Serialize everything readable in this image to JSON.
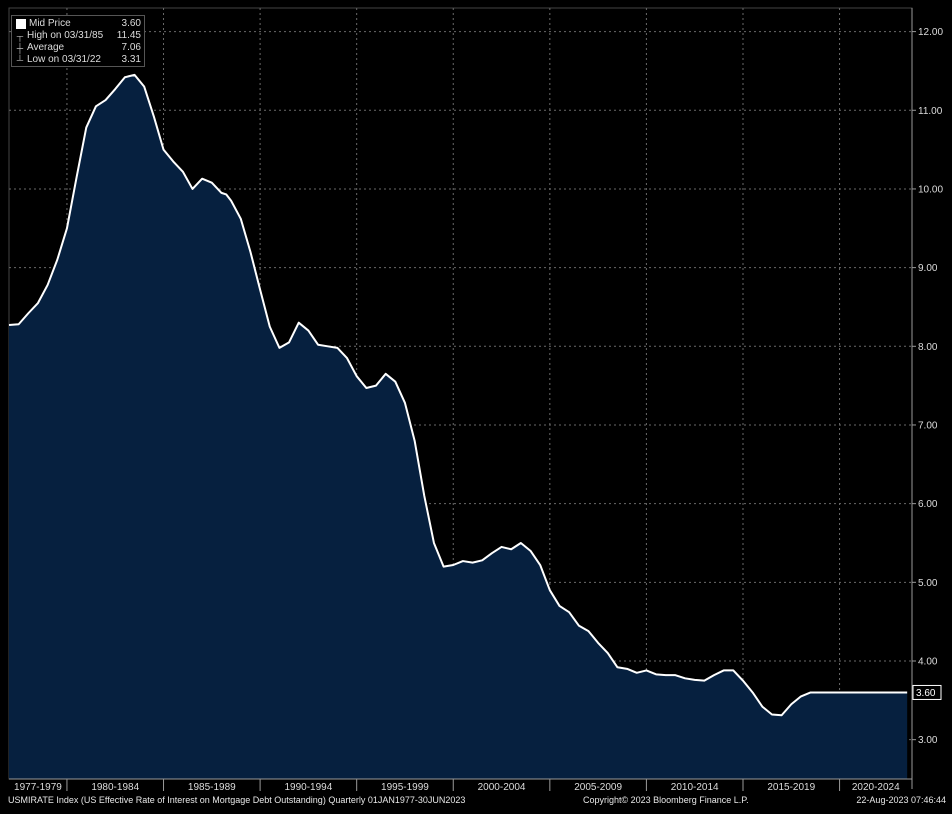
{
  "legend": {
    "mid_label": "Mid Price",
    "mid_value": "3.60",
    "high_label": "High on 03/31/85",
    "high_value": "11.45",
    "avg_label": "Average",
    "avg_value": "7.06",
    "low_label": "Low on 03/31/22",
    "low_value": "3.31"
  },
  "last_value_tag": "3.60",
  "footer": {
    "left": "USMIRATE Index (US Effective Rate of Interest on Mortgage Debt Outstanding)  Quarterly 01JAN1977-30JUN2023",
    "center": "Copyright© 2023 Bloomberg Finance L.P.",
    "right": "22-Aug-2023 07:46:44"
  },
  "colors": {
    "background": "#000000",
    "fill": "#06203f",
    "line": "#ffffff",
    "grid": "#6a6a6a"
  },
  "chart_data": {
    "type": "area",
    "title": "",
    "xlabel": "",
    "ylabel": "",
    "x_categories": [
      "1977-1979",
      "1980-1984",
      "1985-1989",
      "1990-1994",
      "1995-1999",
      "2000-2004",
      "2005-2009",
      "2010-2014",
      "2015-2019",
      "2020-2024"
    ],
    "ylim": [
      2.5,
      12.3
    ],
    "yticks": [
      "3.00",
      "4.00",
      "5.00",
      "6.00",
      "7.00",
      "8.00",
      "9.00",
      "10.00",
      "11.00",
      "12.00"
    ],
    "grid": true,
    "y_axis_side": "right",
    "legend_position": "top-left",
    "xlim": [
      1977.0,
      2023.75
    ],
    "series": [
      {
        "name": "Mid Price",
        "x": [
          1977.0,
          1977.5,
          1978.0,
          1978.5,
          1979.0,
          1979.5,
          1980.0,
          1980.5,
          1981.0,
          1981.5,
          1982.0,
          1982.5,
          1983.0,
          1983.5,
          1984.0,
          1984.5,
          1985.0,
          1985.5,
          1986.0,
          1986.5,
          1987.0,
          1987.5,
          1988.0,
          1988.25,
          1988.5,
          1989.0,
          1989.5,
          1990.0,
          1990.5,
          1991.0,
          1991.5,
          1992.0,
          1992.5,
          1993.0,
          1993.5,
          1994.0,
          1994.5,
          1995.0,
          1995.5,
          1996.0,
          1996.5,
          1997.0,
          1997.5,
          1998.0,
          1998.5,
          1999.0,
          1999.5,
          2000.0,
          2000.5,
          2001.0,
          2001.5,
          2002.0,
          2002.5,
          2003.0,
          2003.5,
          2004.0,
          2004.5,
          2005.0,
          2005.5,
          2006.0,
          2006.5,
          2007.0,
          2007.5,
          2008.0,
          2008.5,
          2009.0,
          2009.5,
          2010.0,
          2010.5,
          2011.0,
          2011.5,
          2012.0,
          2012.5,
          2013.0,
          2013.5,
          2014.0,
          2014.5,
          2015.0,
          2015.5,
          2016.0,
          2016.5,
          2017.0,
          2017.5,
          2018.0,
          2018.5,
          2019.0,
          2019.5,
          2020.0,
          2020.5,
          2021.0,
          2021.5,
          2022.0,
          2022.25,
          2022.5,
          2023.0,
          2023.5
        ],
        "y": [
          8.27,
          8.28,
          8.42,
          8.55,
          8.78,
          9.1,
          9.5,
          10.15,
          10.78,
          11.05,
          11.13,
          11.27,
          11.42,
          11.45,
          11.3,
          10.92,
          10.5,
          10.35,
          10.22,
          10.0,
          10.13,
          10.08,
          9.95,
          9.93,
          9.85,
          9.62,
          9.2,
          8.72,
          8.25,
          7.98,
          8.05,
          8.3,
          8.2,
          8.02,
          8.0,
          7.98,
          7.85,
          7.62,
          7.47,
          7.5,
          7.65,
          7.55,
          7.28,
          6.8,
          6.1,
          5.5,
          5.2,
          5.22,
          5.27,
          5.25,
          5.28,
          5.37,
          5.45,
          5.42,
          5.5,
          5.4,
          5.22,
          4.9,
          4.7,
          4.62,
          4.45,
          4.38,
          4.23,
          4.1,
          3.92,
          3.9,
          3.85,
          3.88,
          3.83,
          3.82,
          3.82,
          3.78,
          3.76,
          3.75,
          3.82,
          3.88,
          3.88,
          3.75,
          3.6,
          3.42,
          3.32,
          3.31,
          3.45,
          3.55,
          3.6,
          3.6,
          3.6,
          3.6,
          3.6,
          3.6,
          3.6,
          3.6,
          3.6,
          3.6,
          3.6,
          3.6
        ]
      }
    ]
  }
}
